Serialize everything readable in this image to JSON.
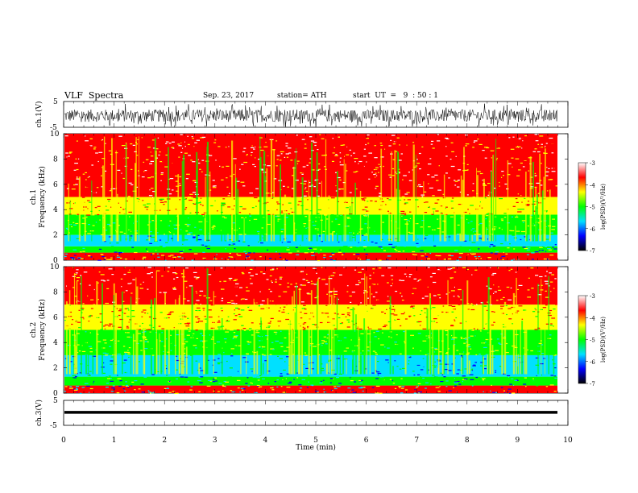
{
  "header": {
    "title": "VLF  Spectra",
    "date": "Sep. 23, 2017",
    "station": "station= ATH",
    "start": "start  UT  =   9  : 50 : 1"
  },
  "colors": {
    "spectrogram_scale": [
      "#000000",
      "#0000ff",
      "#00e0ff",
      "#00ff00",
      "#ffff00",
      "#ff0000",
      "#ffffff"
    ]
  },
  "chart_data": [
    {
      "type": "line",
      "ylabel": "ch.1(V)",
      "ylim": [
        -5,
        5
      ],
      "yticks": [
        "5",
        "-5"
      ],
      "x_range_min": [
        0,
        10
      ],
      "data_extent_min": 9.8,
      "description_values": {
        "center_v": -0.5,
        "amplitude_v": 3.0
      }
    },
    {
      "type": "heatmap",
      "ylabel_channel": "ch.1",
      "ylabel": "Frequency  (kHz)",
      "ylim": [
        0,
        10
      ],
      "yticks": [
        "0",
        "2",
        "4",
        "6",
        "8",
        "10"
      ],
      "colorbar": {
        "label": "log(PSD)(V²/Hz)",
        "range": [
          -7,
          -3
        ],
        "ticks": [
          "-3",
          "-4",
          "-5",
          "-6",
          "-7"
        ]
      },
      "bands_khz": [
        {
          "from": 0,
          "to": 0.6,
          "level": "low"
        },
        {
          "from": 0.6,
          "to": 1.1,
          "level": "mid"
        },
        {
          "from": 1.1,
          "to": 2.0,
          "level": "blue"
        },
        {
          "from": 2.0,
          "to": 3.6,
          "level": "green"
        },
        {
          "from": 3.6,
          "to": 5.0,
          "level": "yellow"
        },
        {
          "from": 5.0,
          "to": 10,
          "level": "red"
        }
      ]
    },
    {
      "type": "heatmap",
      "ylabel_channel": "ch.2",
      "ylabel": "Frequency  (kHz)",
      "ylim": [
        0,
        10
      ],
      "yticks": [
        "0",
        "2",
        "4",
        "6",
        "8",
        "10"
      ],
      "colorbar": {
        "label": "log(PSD)(V²/Hz)",
        "range": [
          -7,
          -3
        ],
        "ticks": [
          "-3",
          "-4",
          "-5",
          "-6",
          "-7"
        ]
      },
      "bands_khz": [
        {
          "from": 0,
          "to": 0.6,
          "level": "low"
        },
        {
          "from": 0.6,
          "to": 1.3,
          "level": "mid"
        },
        {
          "from": 1.3,
          "to": 3.0,
          "level": "blue"
        },
        {
          "from": 3.0,
          "to": 5.0,
          "level": "green"
        },
        {
          "from": 5.0,
          "to": 7.0,
          "level": "yellow"
        },
        {
          "from": 7.0,
          "to": 10,
          "level": "red"
        }
      ]
    },
    {
      "type": "line",
      "ylabel": "ch.3(V)",
      "ylim": [
        -5,
        5
      ],
      "yticks": [
        "5",
        "-5"
      ],
      "constant_value_v": 0.2,
      "xlabel": "Time  (min)",
      "xlim": [
        0,
        10
      ],
      "xticks": [
        "0",
        "1",
        "2",
        "3",
        "4",
        "5",
        "6",
        "7",
        "8",
        "9",
        "10"
      ]
    }
  ]
}
